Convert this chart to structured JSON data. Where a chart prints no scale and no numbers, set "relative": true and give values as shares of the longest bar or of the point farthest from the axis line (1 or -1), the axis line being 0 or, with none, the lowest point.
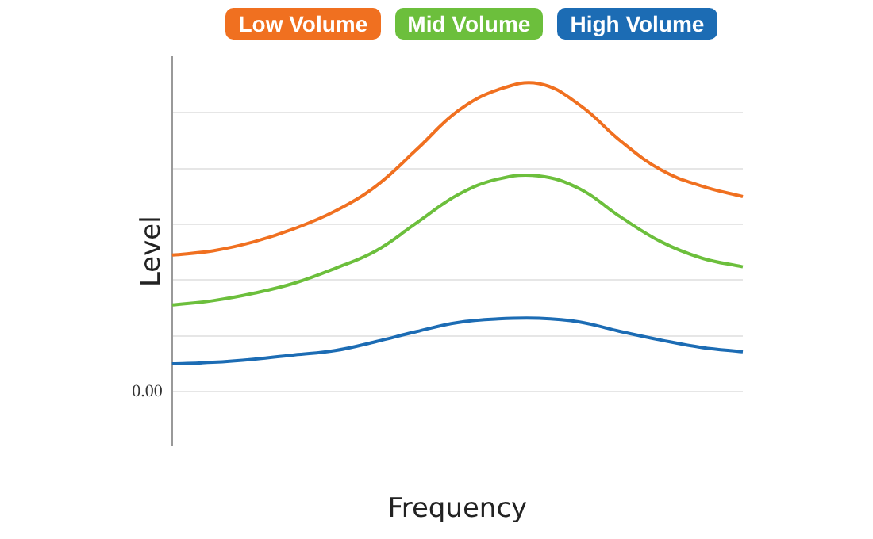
{
  "chart_data": {
    "type": "line",
    "relative": true,
    "xlabel": "Frequency",
    "ylabel": "Level",
    "categories": [
      null,
      null,
      null,
      null,
      null,
      null,
      null,
      null,
      null,
      null,
      null,
      null,
      null,
      null,
      null
    ],
    "series": [
      {
        "name": "Low Volume",
        "color": "#f07020",
        "values": [
          0.443,
          0.457,
          0.486,
          0.529,
          0.586,
          0.667,
          0.786,
          0.91,
          0.98,
          1,
          0.93,
          0.814,
          0.719,
          0.667,
          0.633
        ]
      },
      {
        "name": "Mid Volume",
        "color": "#6cbf3c",
        "values": [
          0.281,
          0.295,
          0.319,
          0.352,
          0.4,
          0.457,
          0.548,
          0.638,
          0.69,
          0.7,
          0.658,
          0.567,
          0.486,
          0.433,
          0.405
        ]
      },
      {
        "name": "High Volume",
        "color": "#1c6cb4",
        "values": [
          0.09,
          0.095,
          0.105,
          0.119,
          0.133,
          0.162,
          0.195,
          0.224,
          0.236,
          0.238,
          0.226,
          0.195,
          0.167,
          0.143,
          0.129
        ]
      }
    ],
    "annotations": [
      "0.00"
    ],
    "grid": "y",
    "legend": "top",
    "marker": "none",
    "line_style": "solid"
  }
}
